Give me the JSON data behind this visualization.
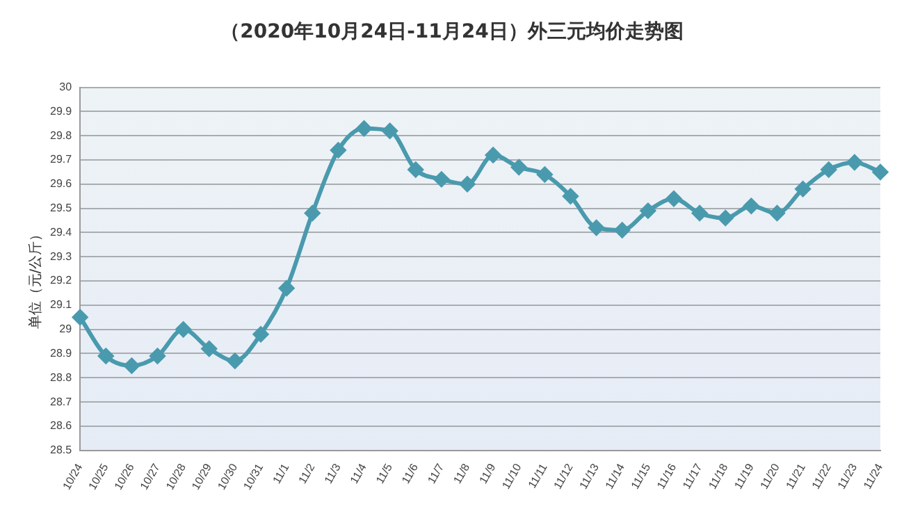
{
  "chart_data": {
    "type": "line",
    "title": "（2020年10月24日-11月24日）外三元均价走势图",
    "ylabel": "单位（元/公斤）",
    "categories": [
      "10/24",
      "10/25",
      "10/26",
      "10/27",
      "10/28",
      "10/29",
      "10/30",
      "10/31",
      "11/1",
      "11/2",
      "11/3",
      "11/4",
      "11/5",
      "11/6",
      "11/7",
      "11/8",
      "11/9",
      "11/10",
      "11/11",
      "11/12",
      "11/13",
      "11/14",
      "11/15",
      "11/16",
      "11/17",
      "11/18",
      "11/19",
      "11/20",
      "11/21",
      "11/22",
      "11/23",
      "11/24"
    ],
    "series": [
      {
        "color": "#4a9aae",
        "values": [
          29.05,
          28.89,
          28.85,
          28.89,
          29.0,
          28.92,
          28.87,
          28.98,
          29.17,
          29.48,
          29.74,
          29.83,
          29.82,
          29.66,
          29.62,
          29.6,
          29.72,
          29.67,
          29.64,
          29.55,
          29.42,
          29.41,
          29.49,
          29.54,
          29.48,
          29.46,
          29.51,
          29.48,
          29.58,
          29.66,
          29.69,
          29.65
        ]
      }
    ],
    "ylim": [
      28.5,
      30
    ],
    "yticks": [
      28.5,
      28.6,
      28.7,
      28.8,
      28.9,
      29,
      29.1,
      29.2,
      29.3,
      29.4,
      29.5,
      29.6,
      29.7,
      29.8,
      29.9,
      30
    ],
    "grid": "y",
    "legend": false,
    "marker": "diamond",
    "line_style": "solid"
  }
}
